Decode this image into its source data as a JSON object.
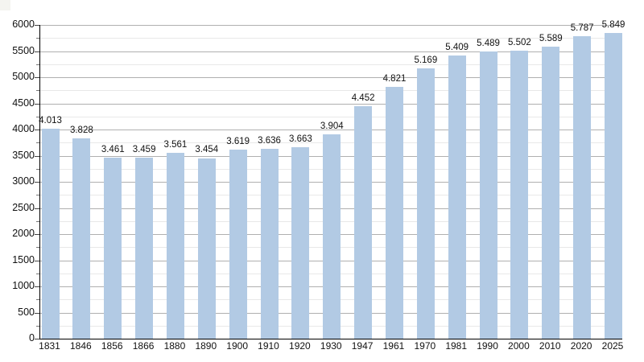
{
  "chart_data": {
    "type": "bar",
    "title": "",
    "xlabel": "",
    "ylabel": "",
    "categories": [
      "1831",
      "1846",
      "1856",
      "1866",
      "1880",
      "1890",
      "1900",
      "1910",
      "1920",
      "1930",
      "1947",
      "1961",
      "1970",
      "1981",
      "1990",
      "2000",
      "2010",
      "2020",
      "2025"
    ],
    "values": [
      4013,
      3828,
      3461,
      3459,
      3561,
      3454,
      3619,
      3636,
      3663,
      3904,
      4452,
      4821,
      5169,
      5409,
      5489,
      5502,
      5589,
      5787,
      5849
    ],
    "value_labels": [
      "4.013",
      "3.828",
      "3.461",
      "3.459",
      "3.561",
      "3.454",
      "3.619",
      "3.636",
      "3.663",
      "3.904",
      "4.452",
      "4.821",
      "5.169",
      "5.409",
      "5.489",
      "5.502",
      "5.589",
      "5.787",
      "5.849"
    ],
    "ylim": [
      0,
      6000
    ],
    "ytick_step": 500,
    "yminor_step": 250,
    "ytick_labels": [
      "0",
      "500",
      "1000",
      "1500",
      "2000",
      "2500",
      "3000",
      "3500",
      "4000",
      "4500",
      "5000",
      "5500",
      "6000"
    ],
    "grid": "horizontal, major and minor, on",
    "legend": "none",
    "colors": {
      "bar_fill": "#b2cae4",
      "major_grid": "#b0b0b0",
      "minor_grid": "#e8e8e8",
      "axis": "#000000",
      "text": "#111111",
      "background": "#ffffff"
    }
  }
}
